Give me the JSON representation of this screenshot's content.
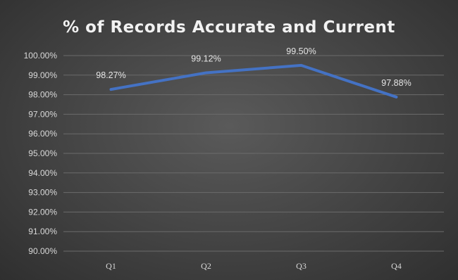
{
  "chart_data": {
    "type": "line",
    "title": "% of Records Accurate and Current",
    "categories": [
      "Q1",
      "Q2",
      "Q3",
      "Q4"
    ],
    "series": [
      {
        "values": [
          98.27,
          99.12,
          99.5,
          97.88
        ],
        "labels": [
          "98.27%",
          "99.12%",
          "99.50%",
          "97.88%"
        ],
        "color": "#4472c4"
      }
    ],
    "ylim": [
      90,
      100
    ],
    "yticks": [
      "90.00%",
      "91.00%",
      "92.00%",
      "93.00%",
      "94.00%",
      "95.00%",
      "96.00%",
      "97.00%",
      "98.00%",
      "99.00%",
      "100.00%"
    ],
    "grid": true,
    "legend": "none",
    "background": "#474747"
  }
}
